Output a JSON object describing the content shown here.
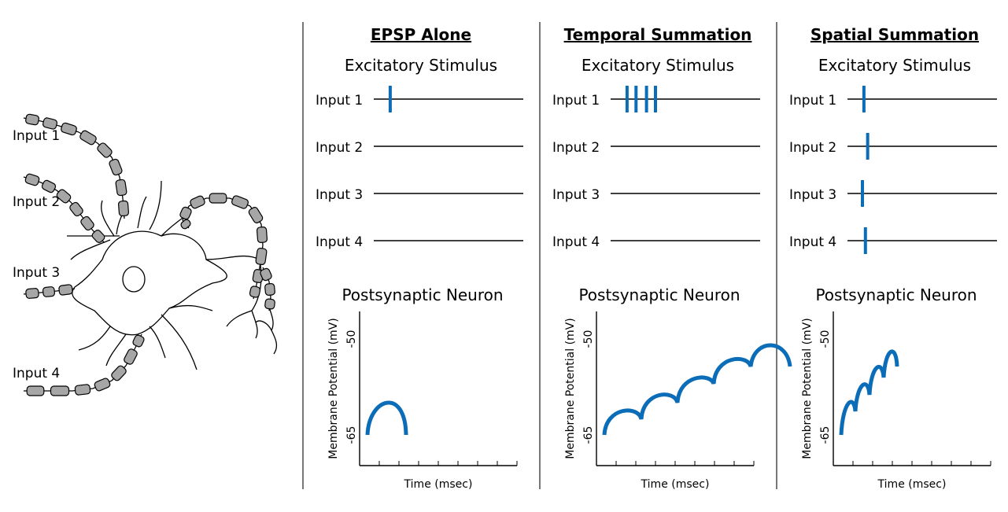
{
  "neuron": {
    "inputs": [
      "Input 1",
      "Input 2",
      "Input 3",
      "Input 4"
    ]
  },
  "colors": {
    "stimulus": "#0b6db7",
    "line": "#000000",
    "myelin": "#a6a6a6",
    "divider": "#555555"
  },
  "stimulus_label": "Excitatory Stimulus",
  "neuron_label": "Postsynaptic Neuron",
  "ylabel": "Membrane Potential (mV)",
  "xlabel": "Time (msec)",
  "yticks": [
    "-50",
    "-65"
  ],
  "input_labels": [
    "Input 1",
    "Input 2",
    "Input 3",
    "Input 4"
  ],
  "panels": [
    {
      "title": "EPSP Alone",
      "stimuli": [
        [
          0.11
        ],
        [],
        [],
        []
      ],
      "epsp_count": 1
    },
    {
      "title": "Temporal Summation",
      "stimuli": [
        [
          0.11,
          0.17,
          0.24,
          0.3
        ],
        [],
        [],
        []
      ],
      "epsp_count": 5
    },
    {
      "title": "Spatial Summation",
      "stimuli": [
        [
          0.11
        ],
        [
          0.135
        ],
        [
          0.1
        ],
        [
          0.12
        ]
      ],
      "epsp_count": 4
    }
  ]
}
